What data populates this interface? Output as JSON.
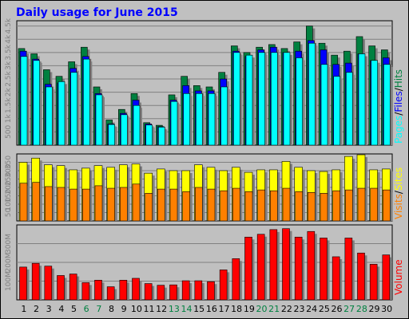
{
  "title": "Daily usage for June 2015",
  "colors": {
    "background": "#c0c0c0",
    "panel": "#c0c0c0",
    "title": "#0000ff",
    "grid": "#808080",
    "hits": "#008040",
    "files": "#0000ff",
    "pages": "#00ffff",
    "visits": "#ff8000",
    "sites": "#ffff00",
    "volume": "#ff0000",
    "weekend_label": "#008040",
    "weekday_label": "#000000"
  },
  "legend": {
    "top": {
      "pages": "Pages",
      "sep1": "/",
      "files": "Files",
      "sep2": "/",
      "hits": "Hits"
    },
    "mid": {
      "visits": "Visits",
      "sep1": "/",
      "sites": "Sites"
    },
    "bottom": {
      "volume": "Volume"
    }
  },
  "chart_data": [
    {
      "type": "bar",
      "panel": "hits-files-pages",
      "categories": [
        "1",
        "2",
        "3",
        "4",
        "5",
        "6",
        "7",
        "8",
        "9",
        "10",
        "11",
        "12",
        "13",
        "14",
        "15",
        "16",
        "17",
        "18",
        "19",
        "20",
        "21",
        "22",
        "23",
        "24",
        "25",
        "26",
        "27",
        "28",
        "29",
        "30"
      ],
      "weekend_days": [
        "6",
        "7",
        "13",
        "14",
        "20",
        "21",
        "27",
        "28"
      ],
      "y_ticks": [
        "500",
        "1k",
        "1.5k",
        "2k",
        "2.5k",
        "3k",
        "3.5k",
        "4k",
        "4.5k"
      ],
      "ylim": [
        0,
        4700
      ],
      "series": [
        {
          "name": "Hits",
          "values": [
            3650,
            3450,
            2850,
            2600,
            3150,
            3700,
            2200,
            950,
            1350,
            1950,
            850,
            750,
            1900,
            2600,
            2250,
            2200,
            2750,
            3750,
            3500,
            3700,
            3800,
            3650,
            3900,
            4500,
            3850,
            3400,
            3550,
            4100,
            3750,
            3600
          ]
        },
        {
          "name": "Files",
          "values": [
            3550,
            3250,
            2300,
            2350,
            2900,
            3350,
            1950,
            800,
            1200,
            1700,
            800,
            700,
            1700,
            2250,
            2050,
            2050,
            2500,
            3550,
            3350,
            3600,
            3700,
            3500,
            3550,
            3950,
            3600,
            3050,
            3100,
            3450,
            3200,
            3300
          ]
        },
        {
          "name": "Pages",
          "values": [
            3350,
            3200,
            2200,
            2400,
            2750,
            3250,
            1900,
            780,
            1150,
            1500,
            760,
            680,
            1650,
            1950,
            1950,
            1950,
            2200,
            3500,
            3400,
            3500,
            3500,
            3500,
            3300,
            3850,
            3050,
            2600,
            2750,
            3450,
            3200,
            3050
          ]
        }
      ]
    },
    {
      "type": "bar",
      "panel": "visits-sites",
      "categories": [
        "1",
        "2",
        "3",
        "4",
        "5",
        "6",
        "7",
        "8",
        "9",
        "10",
        "11",
        "12",
        "13",
        "14",
        "15",
        "16",
        "17",
        "18",
        "19",
        "20",
        "21",
        "22",
        "23",
        "24",
        "25",
        "26",
        "27",
        "28",
        "29",
        "30"
      ],
      "y_ticks": [
        "50",
        "100",
        "150",
        "200",
        "250",
        "300",
        "350"
      ],
      "ylim": [
        0,
        400
      ],
      "series": [
        {
          "name": "Sites",
          "values": [
            350,
            375,
            335,
            330,
            305,
            315,
            330,
            320,
            335,
            340,
            285,
            310,
            300,
            300,
            335,
            320,
            300,
            320,
            290,
            305,
            305,
            355,
            320,
            300,
            295,
            305,
            385,
            395,
            305,
            310
          ]
        },
        {
          "name": "Visits",
          "values": [
            225,
            230,
            205,
            200,
            190,
            190,
            210,
            195,
            200,
            220,
            165,
            190,
            190,
            175,
            200,
            190,
            180,
            195,
            175,
            185,
            180,
            195,
            175,
            170,
            165,
            180,
            185,
            195,
            195,
            185
          ]
        }
      ]
    },
    {
      "type": "bar",
      "panel": "volume",
      "categories": [
        "1",
        "2",
        "3",
        "4",
        "5",
        "6",
        "7",
        "8",
        "9",
        "10",
        "11",
        "12",
        "13",
        "14",
        "15",
        "16",
        "17",
        "18",
        "19",
        "20",
        "21",
        "22",
        "23",
        "24",
        "25",
        "26",
        "27",
        "28",
        "29",
        "30"
      ],
      "y_ticks": [
        "100M",
        "200M",
        "300M"
      ],
      "ylim": [
        0,
        400
      ],
      "series": [
        {
          "name": "Volume",
          "values": [
            175,
            195,
            180,
            130,
            138,
            92,
            105,
            70,
            105,
            115,
            87,
            78,
            80,
            102,
            102,
            97,
            160,
            220,
            335,
            350,
            375,
            380,
            335,
            365,
            330,
            230,
            330,
            250,
            190,
            240
          ]
        }
      ]
    }
  ]
}
